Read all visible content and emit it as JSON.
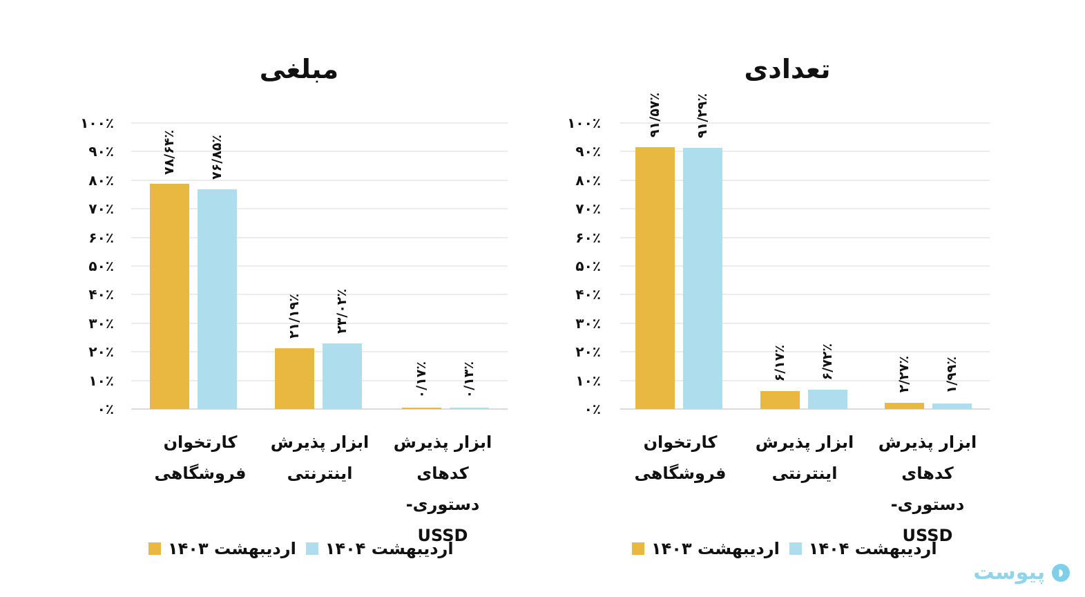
{
  "colors": {
    "series_1403": "#E9B840",
    "series_1404": "#AEDDEE",
    "grid": "#ECECEC"
  },
  "y_ticks": [
    "۰٪",
    "۱۰٪",
    "۲۰٪",
    "۳۰٪",
    "۴۰٪",
    "۵۰٪",
    "۶۰٪",
    "۷۰٪",
    "۸۰٪",
    "۹۰٪",
    "۱۰۰٪"
  ],
  "categories": [
    {
      "line1": "کارتخوان",
      "line2": "فروشگاهی",
      "line3": ""
    },
    {
      "line1": "ابزار پذیرش",
      "line2": "اینترنتی",
      "line3": ""
    },
    {
      "line1": "ابزار پذیرش",
      "line2": "کدهای دستوری-",
      "line3": "USSD"
    }
  ],
  "legend": {
    "s1403": "اردیبهشت ۱۴۰۳",
    "s1404": "اردیبهشت ۱۴۰۴"
  },
  "left_chart": {
    "title": "مبلغی",
    "labels_1403": [
      "۷۸/۶۴٪",
      "۲۱/۱۹٪",
      "۰/۱۷٪"
    ],
    "labels_1404": [
      "۷۶/۸۵٪",
      "۲۳/۰۲٪",
      "۰/۱۳٪"
    ]
  },
  "right_chart": {
    "title": "تعدادی",
    "labels_1403": [
      "۹۱/۵۷٪",
      "۶/۱۷٪",
      "۲/۲۷٪"
    ],
    "labels_1404": [
      "۹۱/۲۹٪",
      "۶/۷۲٪",
      "۱/۹۹٪"
    ]
  },
  "logo": {
    "text": "پیوست"
  },
  "chart_data": [
    {
      "type": "bar",
      "title": "مبلغی",
      "categories": [
        "کارتخوان فروشگاهی",
        "ابزار پذیرش اینترنتی",
        "ابزار پذیرش کدهای دستوری-USSD"
      ],
      "series": [
        {
          "name": "اردیبهشت ۱۴۰۳",
          "color": "#E9B840",
          "values": [
            78.64,
            21.19,
            0.17
          ]
        },
        {
          "name": "اردیبهشت ۱۴۰۴",
          "color": "#AEDDEE",
          "values": [
            76.85,
            23.02,
            0.13
          ]
        }
      ],
      "xlabel": "",
      "ylabel": "",
      "ylim": [
        0,
        100
      ],
      "y_tick_step": 10,
      "grid": true,
      "legend_position": "bottom",
      "value_labels": "vertical above bars"
    },
    {
      "type": "bar",
      "title": "تعدادی",
      "categories": [
        "کارتخوان فروشگاهی",
        "ابزار پذیرش اینترنتی",
        "ابزار پذیرش کدهای دستوری-USSD"
      ],
      "series": [
        {
          "name": "اردیبهشت ۱۴۰۳",
          "color": "#E9B840",
          "values": [
            91.57,
            6.17,
            2.27
          ]
        },
        {
          "name": "اردیبهشت ۱۴۰۴",
          "color": "#AEDDEE",
          "values": [
            91.29,
            6.72,
            1.99
          ]
        }
      ],
      "xlabel": "",
      "ylabel": "",
      "ylim": [
        0,
        100
      ],
      "y_tick_step": 10,
      "grid": true,
      "legend_position": "bottom",
      "value_labels": "vertical above bars"
    }
  ]
}
